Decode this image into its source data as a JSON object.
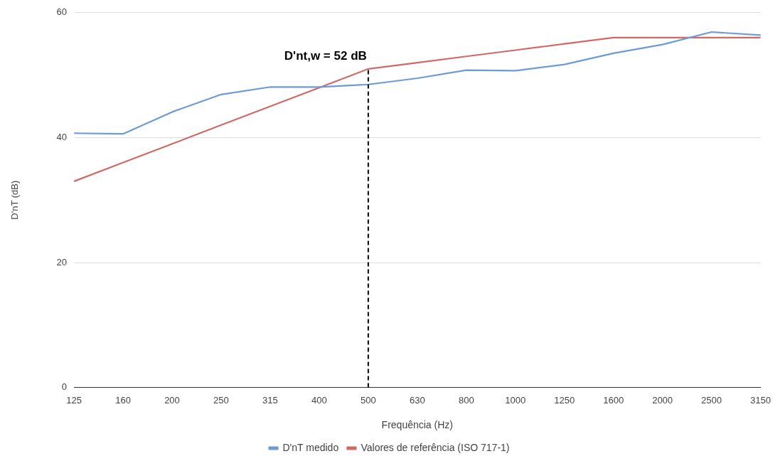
{
  "chart_data": {
    "type": "line",
    "xlabel": "Frequência (Hz)",
    "ylabel": "D'nT (dB)",
    "categories": [
      "125",
      "160",
      "200",
      "250",
      "315",
      "400",
      "500",
      "630",
      "800",
      "1000",
      "1250",
      "1600",
      "2000",
      "2500",
      "3150"
    ],
    "series": [
      {
        "name": "D'nT medido",
        "color": "#6d9bd6",
        "values": [
          40.7,
          40.6,
          44.1,
          46.9,
          48.1,
          48.1,
          48.5,
          49.5,
          50.8,
          50.7,
          51.7,
          53.5,
          54.9,
          56.9,
          56.4
        ]
      },
      {
        "name": "Valores de referência (ISO 717-1)",
        "color": "#d16a66",
        "values": [
          33,
          36,
          39,
          42,
          45,
          48,
          51,
          52,
          53,
          54,
          55,
          56,
          56,
          56,
          56
        ]
      }
    ],
    "ylim": [
      0,
      60
    ],
    "yticks": [
      0,
      20,
      40,
      60
    ],
    "grid": "y",
    "legend": "bottom",
    "marker": "none",
    "line_style": "solid",
    "ref_lines": [
      {
        "axis": "x",
        "value": "500",
        "label": "D'nt,w = 52 dB",
        "color": "#000000",
        "line_style": "dashed"
      }
    ]
  }
}
